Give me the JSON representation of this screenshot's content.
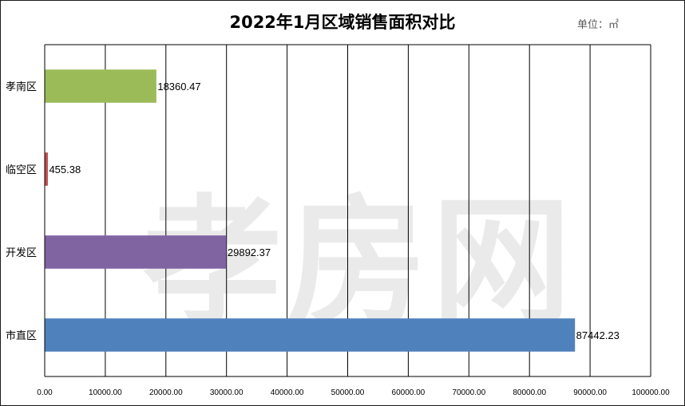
{
  "chart_data": {
    "type": "bar",
    "orientation": "horizontal",
    "title": "2022年1月区域销售面积对比",
    "unit": "单位：㎡",
    "categories": [
      "孝南区",
      "临空区",
      "开发区",
      "市直区"
    ],
    "values": [
      18360.47,
      455.38,
      29892.37,
      87442.23
    ],
    "data_labels": [
      "18360.47",
      "455.38",
      "29892.37",
      "87442.23"
    ],
    "colors": [
      "#9BBB59",
      "#C0504D",
      "#8064A2",
      "#4F81BD"
    ],
    "xlim": [
      0,
      100000
    ],
    "x_ticks": [
      "0.00",
      "10000.00",
      "20000.00",
      "30000.00",
      "40000.00",
      "50000.00",
      "60000.00",
      "70000.00",
      "80000.00",
      "90000.00",
      "100000.00"
    ],
    "grid": true,
    "legend": "none",
    "watermark": "孝房网"
  }
}
